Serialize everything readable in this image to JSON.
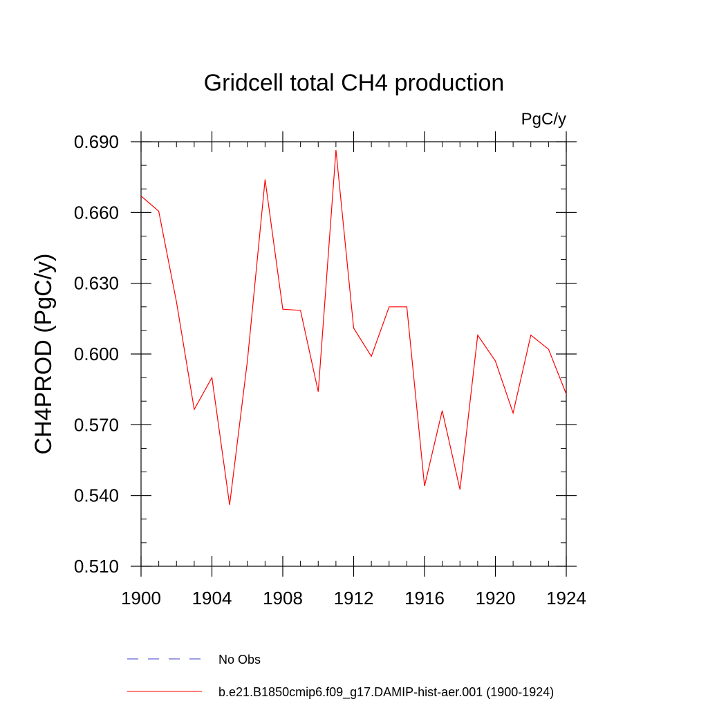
{
  "chart_data": {
    "type": "line",
    "title": "Gridcell total CH4 production",
    "units_label": "PgC/y",
    "ylabel": "CH4PROD  (PgC/y)",
    "xlabel": "",
    "xlim": [
      1900,
      1924
    ],
    "ylim": [
      0.51,
      0.69
    ],
    "x_ticks": [
      1900,
      1904,
      1908,
      1912,
      1916,
      1920,
      1924
    ],
    "x_tick_labels": [
      "1900",
      "1904",
      "1908",
      "1912",
      "1916",
      "1920",
      "1924"
    ],
    "y_ticks": [
      0.51,
      0.54,
      0.57,
      0.6,
      0.63,
      0.66,
      0.69
    ],
    "y_tick_labels": [
      "0.510",
      "0.540",
      "0.570",
      "0.600",
      "0.630",
      "0.660",
      "0.690"
    ],
    "x_minor_step": 1,
    "y_minor_step": 0.01,
    "grid": false,
    "legend_position": "bottom",
    "series": [
      {
        "name": "b.e21.B1850cmip6.f09_g17.DAMIP-hist-aer.001 (1900-1924)",
        "color": "#ff0000",
        "dash": "solid",
        "x": [
          1900,
          1901,
          1902,
          1903,
          1904,
          1905,
          1906,
          1907,
          1908,
          1909,
          1910,
          1911,
          1912,
          1913,
          1914,
          1915,
          1916,
          1917,
          1918,
          1919,
          1920,
          1921,
          1922,
          1923,
          1924
        ],
        "values": [
          0.667,
          0.6605,
          0.622,
          0.5765,
          0.59,
          0.536,
          0.597,
          0.674,
          0.619,
          0.6185,
          0.584,
          0.6865,
          0.611,
          0.599,
          0.62,
          0.62,
          0.544,
          0.576,
          0.5425,
          0.608,
          0.597,
          0.575,
          0.608,
          0.602,
          0.583
        ]
      }
    ],
    "legend": [
      {
        "label": "No Obs",
        "color": "#3a3ac8",
        "dash": "dashed"
      },
      {
        "label": "b.e21.B1850cmip6.f09_g17.DAMIP-hist-aer.001 (1900-1924)",
        "color": "#ff0000",
        "dash": "solid"
      }
    ]
  }
}
